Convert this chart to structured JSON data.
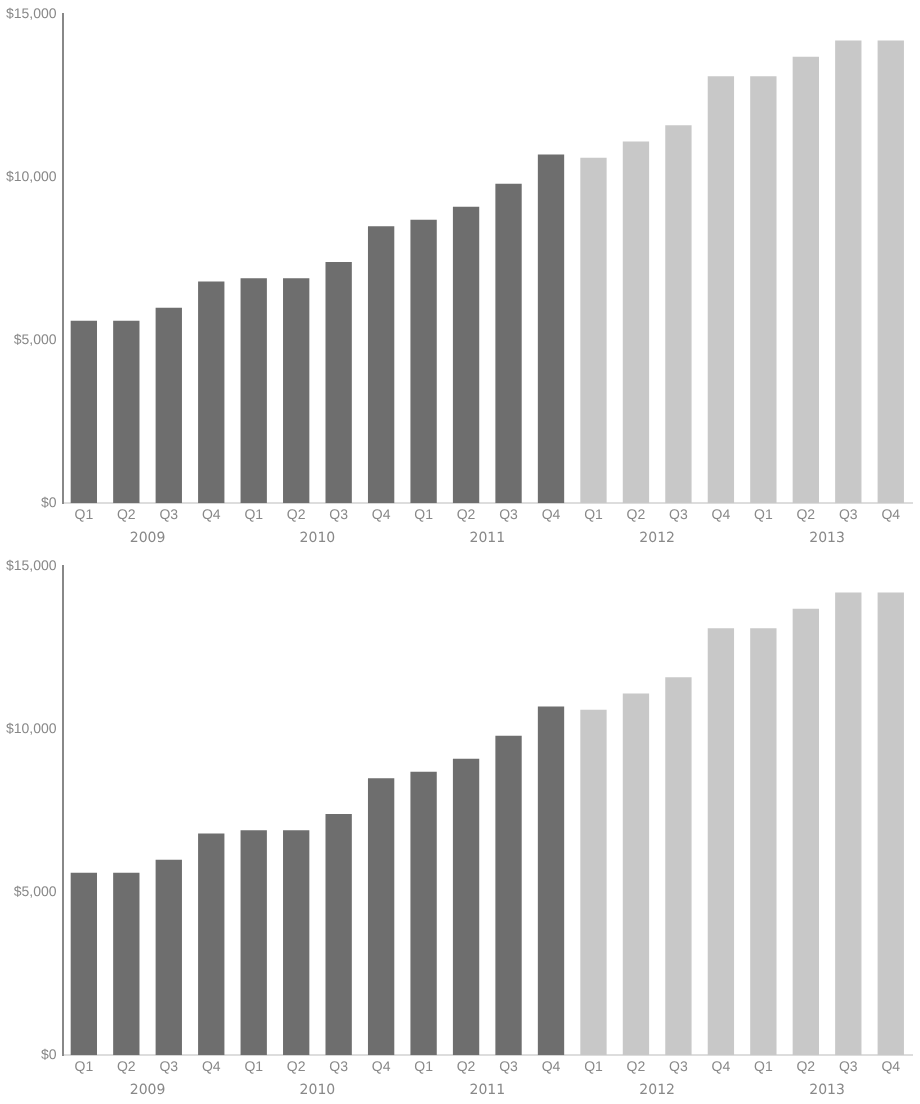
{
  "chart_data": [
    {
      "type": "bar",
      "categories": [
        "Q1",
        "Q2",
        "Q3",
        "Q4",
        "Q1",
        "Q2",
        "Q3",
        "Q4",
        "Q1",
        "Q2",
        "Q3",
        "Q4",
        "Q1",
        "Q2",
        "Q3",
        "Q4",
        "Q1",
        "Q2",
        "Q3",
        "Q4"
      ],
      "values": [
        5600,
        5600,
        6000,
        6800,
        6900,
        6900,
        7400,
        8500,
        8700,
        9100,
        9800,
        10700,
        10600,
        11100,
        11600,
        13100,
        13100,
        13700,
        14200,
        14200
      ],
      "colors": [
        "#6e6e6e",
        "#6e6e6e",
        "#6e6e6e",
        "#6e6e6e",
        "#6e6e6e",
        "#6e6e6e",
        "#6e6e6e",
        "#6e6e6e",
        "#6e6e6e",
        "#6e6e6e",
        "#6e6e6e",
        "#6e6e6e",
        "#c8c8c8",
        "#c8c8c8",
        "#c8c8c8",
        "#c8c8c8",
        "#c8c8c8",
        "#c8c8c8",
        "#c8c8c8",
        "#c8c8c8"
      ],
      "ylim": [
        0,
        15000
      ],
      "yticks": [
        {
          "value": 0,
          "label": "$0"
        },
        {
          "value": 5000,
          "label": "$5,000"
        },
        {
          "value": 10000,
          "label": "$10,000"
        },
        {
          "value": 15000,
          "label": "$15,000"
        }
      ],
      "grid": false,
      "annotations": [
        "2009",
        "2010",
        "2011",
        "2012",
        "2013"
      ]
    },
    {
      "type": "bar",
      "categories": [
        "Q1",
        "Q2",
        "Q3",
        "Q4",
        "Q1",
        "Q2",
        "Q3",
        "Q4",
        "Q1",
        "Q2",
        "Q3",
        "Q4",
        "Q1",
        "Q2",
        "Q3",
        "Q4",
        "Q1",
        "Q2",
        "Q3",
        "Q4"
      ],
      "values": [
        5600,
        5600,
        6000,
        6800,
        6900,
        6900,
        7400,
        8500,
        8700,
        9100,
        9800,
        10700,
        10600,
        11100,
        11600,
        13100,
        13100,
        13700,
        14200,
        14200
      ],
      "colors": [
        "#6e6e6e",
        "#6e6e6e",
        "#6e6e6e",
        "#6e6e6e",
        "#6e6e6e",
        "#6e6e6e",
        "#6e6e6e",
        "#6e6e6e",
        "#6e6e6e",
        "#6e6e6e",
        "#6e6e6e",
        "#6e6e6e",
        "#c8c8c8",
        "#c8c8c8",
        "#c8c8c8",
        "#c8c8c8",
        "#c8c8c8",
        "#c8c8c8",
        "#c8c8c8",
        "#c8c8c8"
      ],
      "ylim": [
        0,
        15000
      ],
      "yticks": [
        {
          "value": 0,
          "label": "$0"
        },
        {
          "value": 5000,
          "label": "$5,000"
        },
        {
          "value": 10000,
          "label": "$10,000"
        },
        {
          "value": 15000,
          "label": "$15,000"
        }
      ],
      "grid": false,
      "annotations": [
        "2009",
        "2010",
        "2011",
        "2012",
        "2013"
      ]
    }
  ]
}
